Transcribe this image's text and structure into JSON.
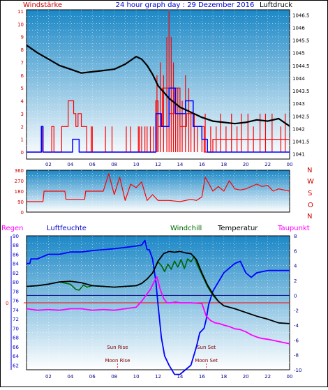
{
  "colors": {
    "grad_top": "#1c88c6",
    "grad_bottom": "#ffffff",
    "wind_red": "#ff0000",
    "wind_blue": "#0000ff",
    "pressure": "#000000",
    "humidity": "#0000ff",
    "windchill": "#006600",
    "temperature": "#000000",
    "dewpoint": "#ff00ff",
    "rain": "#ff0000",
    "label_darkred": "#800000",
    "header_blue": "#0000cc",
    "axis_right": "#000080"
  },
  "header": {
    "left": "Windstärke",
    "center": "24 hour graph day : 29 Dezember 2016",
    "right": "Luftdruck"
  },
  "compass": [
    "N",
    "W",
    "S",
    "O",
    "N"
  ],
  "legend": {
    "rain": "Regen",
    "humidity": "Luftfeuchte",
    "windchill": "Windchill",
    "temperature": "Temperatur",
    "dewpoint": "Taupunkt"
  },
  "astro": {
    "sun_rise": "Sun Rise",
    "sun_set": "Sun Set",
    "moon_rise": "Moon Rise",
    "moon_set": "Moon Set",
    "sun_rise_h": 8.3,
    "sun_set_h": 16.4,
    "moon_rise_h": 8.3,
    "moon_set_h": 16.4
  },
  "chart_data": [
    {
      "type": "line",
      "name": "wind-and-pressure",
      "x_ticks": [
        "02",
        "04",
        "06",
        "08",
        "10",
        "12",
        "14",
        "16",
        "18",
        "20",
        "22",
        "00"
      ],
      "y_left_ticks": [
        0,
        1,
        2,
        3,
        4,
        5,
        6,
        7,
        8,
        9,
        10,
        11
      ],
      "y_left_lim": [
        0,
        11
      ],
      "y_right_ticks": [
        "1041",
        "1041.5",
        "1042",
        "1042.5",
        "1043",
        "1043.5",
        "1044",
        "1044.5",
        "1045",
        "1045.5",
        "1046",
        "1046.5"
      ],
      "y_right_lim": [
        1040.8,
        1046.7
      ],
      "x_lim": [
        0,
        24
      ],
      "pressure": {
        "x": [
          0,
          1,
          2,
          3,
          4,
          5,
          6,
          7,
          8,
          9,
          10,
          10.5,
          11,
          11.5,
          12,
          12.5,
          13,
          14,
          15,
          16,
          17,
          18,
          19,
          20,
          21,
          22,
          23,
          24
        ],
        "y": [
          1045.3,
          1045.0,
          1044.75,
          1044.5,
          1044.35,
          1044.2,
          1044.25,
          1044.3,
          1044.35,
          1044.55,
          1044.85,
          1044.75,
          1044.5,
          1044.15,
          1043.7,
          1043.45,
          1043.2,
          1042.85,
          1042.65,
          1042.45,
          1042.3,
          1042.25,
          1042.2,
          1042.25,
          1042.35,
          1042.3,
          1042.4,
          1042.1
        ]
      },
      "wind_gust_bars": {
        "x": [
          5.9,
          6.0,
          7.2,
          7.8,
          9.1,
          9.5,
          10.2,
          10.3,
          10.5,
          10.8,
          11.0,
          11.3,
          11.6,
          11.8,
          11.9,
          12.0,
          12.2,
          12.5,
          12.8,
          13.0,
          13.2,
          13.4,
          13.6,
          13.8,
          14.0,
          14.2,
          14.5,
          14.8,
          15.0,
          15.3,
          15.6,
          16.0,
          16.3,
          16.8,
          17.3,
          17.7,
          18.2,
          18.7,
          19.2,
          19.6,
          20.2,
          20.7,
          21.3,
          21.8,
          22.4,
          23.2,
          23.6
        ],
        "y": [
          2,
          2,
          2,
          2,
          2,
          2,
          2,
          2,
          2,
          2,
          2,
          2,
          2,
          4,
          6,
          2,
          7,
          6,
          9,
          11,
          9,
          7,
          5,
          5,
          3,
          4,
          6,
          5,
          3,
          3,
          2,
          2,
          3,
          2,
          2,
          3,
          2,
          3,
          2,
          3,
          3,
          2,
          3,
          3,
          3,
          2,
          3
        ]
      },
      "wind_red_steps": {
        "x": [
          0,
          1.4,
          1.4,
          1.5,
          1.5,
          2.3,
          2.3,
          2.5,
          2.5,
          3.2,
          3.2,
          3.8,
          3.8,
          4.3,
          4.3,
          4.5,
          4.5,
          4.7,
          4.7,
          5.0,
          5.0,
          5.5,
          5.5,
          6.0,
          6.0,
          11.8,
          11.8,
          12.0,
          12.0,
          12.4,
          12.4,
          13.0,
          13.0,
          13.5,
          13.5,
          14.0,
          14.0,
          14.6,
          14.6,
          15.3,
          15.3,
          16.2,
          16.2,
          17.0,
          17.0,
          24
        ],
        "y": [
          0,
          0,
          2,
          2,
          0,
          0,
          2,
          2,
          0,
          0,
          2,
          2,
          4,
          4,
          3,
          3,
          2,
          2,
          3,
          3,
          2,
          2,
          0,
          0,
          0,
          0,
          4,
          4,
          2,
          2,
          5,
          5,
          3,
          3,
          5,
          5,
          2,
          2,
          3,
          3,
          2,
          2,
          0,
          0,
          1,
          1
        ]
      },
      "wind_blue_steps": {
        "x": [
          0,
          1.35,
          1.35,
          1.5,
          1.5,
          4.2,
          4.2,
          4.8,
          4.8,
          5.2,
          5.2,
          11.8,
          11.8,
          12.3,
          12.3,
          13.0,
          13.0,
          13.6,
          13.6,
          14.5,
          14.5,
          15.2,
          15.2,
          16.0,
          16.0,
          16.5,
          16.5,
          24
        ],
        "y": [
          0,
          0,
          2,
          2,
          0,
          0,
          1,
          1,
          0,
          0,
          0,
          0,
          3,
          3,
          2,
          2,
          5,
          5,
          3,
          3,
          4,
          4,
          2,
          2,
          1,
          1,
          0,
          0
        ]
      }
    },
    {
      "type": "line",
      "name": "wind-direction",
      "x_lim": [
        0,
        24
      ],
      "y_ticks": [
        0,
        90,
        180,
        270,
        360
      ],
      "y_lim": [
        0,
        360
      ],
      "direction": {
        "x": [
          0,
          1.5,
          1.6,
          3.5,
          3.6,
          5.3,
          5.4,
          7.0,
          7.5,
          8.0,
          8.5,
          9.0,
          9.5,
          10.0,
          10.5,
          11.0,
          11.5,
          12.0,
          13.0,
          14.0,
          15.0,
          15.5,
          16.0,
          16.3,
          16.6,
          17.0,
          17.5,
          18.0,
          18.5,
          19.0,
          19.5,
          20.0,
          21.0,
          21.5,
          22.0,
          22.5,
          23.0,
          24.0
        ],
        "y": [
          90,
          90,
          180,
          180,
          110,
          110,
          180,
          180,
          330,
          150,
          300,
          100,
          240,
          210,
          260,
          100,
          150,
          100,
          100,
          90,
          110,
          100,
          130,
          300,
          250,
          180,
          220,
          180,
          270,
          200,
          190,
          200,
          240,
          220,
          230,
          180,
          200,
          180
        ]
      }
    },
    {
      "type": "line",
      "name": "temperature-and-humidity",
      "x_ticks": [
        "02",
        "04",
        "06",
        "08",
        "10",
        "12",
        "14",
        "16",
        "18",
        "20",
        "22",
        "00"
      ],
      "x_lim": [
        0,
        24
      ],
      "y_left_ticks": [
        62,
        64,
        66,
        68,
        70,
        72,
        74,
        76,
        78,
        80,
        82,
        84,
        86,
        88,
        90
      ],
      "y_left_lim": [
        61,
        90
      ],
      "y_right_ticks": [
        -10,
        -8,
        -6,
        -4,
        -2,
        0,
        2,
        4,
        6,
        8
      ],
      "y_right_lim": [
        -10,
        8
      ],
      "rain_axis_label": "0",
      "humidity": {
        "x": [
          0,
          0.3,
          0.4,
          1.0,
          2.0,
          3.0,
          4.0,
          5.0,
          6.0,
          7.0,
          8.0,
          9.0,
          10.0,
          10.5,
          10.8,
          11.0,
          11.2,
          11.5,
          11.8,
          12.0,
          12.3,
          12.6,
          13.0,
          13.5,
          14.0,
          14.5,
          15.0,
          15.5,
          15.8,
          16.2,
          16.4,
          16.6,
          17.0,
          17.5,
          18.0,
          18.5,
          19.0,
          19.5,
          20.0,
          20.5,
          21.0,
          22.0,
          23.0,
          24.0
        ],
        "y": [
          84,
          84,
          85,
          85,
          86,
          86,
          86.5,
          86.5,
          86.8,
          87,
          87.2,
          87.5,
          87.8,
          88,
          89,
          87,
          87,
          85,
          80,
          75,
          68,
          64,
          62,
          60,
          60,
          61,
          62,
          66,
          69,
          70,
          72,
          75,
          78,
          80,
          82,
          83,
          84,
          84.5,
          82,
          81,
          82,
          82.5,
          82.5,
          82.5
        ]
      },
      "temperature": {
        "x": [
          0,
          1.0,
          2.0,
          3.0,
          4.0,
          5.0,
          6.0,
          7.0,
          8.0,
          9.0,
          10.0,
          10.5,
          11.0,
          11.5,
          12.0,
          12.5,
          13.0,
          13.5,
          14.0,
          14.5,
          15.0,
          15.5,
          16.0,
          16.5,
          17.0,
          17.5,
          18.0,
          19.0,
          20.0,
          21.0,
          22.0,
          23.0,
          24.0
        ],
        "y": [
          1.2,
          1.3,
          1.5,
          1.8,
          1.9,
          1.7,
          1.3,
          1.2,
          1.1,
          1.2,
          1.3,
          1.6,
          2.2,
          3.0,
          4.6,
          5.6,
          5.9,
          5.8,
          5.9,
          5.7,
          5.6,
          4.8,
          3.0,
          1.4,
          0.2,
          -0.8,
          -1.4,
          -1.8,
          -2.3,
          -2.8,
          -3.2,
          -3.7,
          -3.8
        ]
      },
      "windchill": {
        "x": [
          0,
          1.0,
          2.0,
          3.0,
          4.0,
          4.5,
          4.8,
          5.2,
          5.5,
          6.0,
          7.0,
          8.0,
          9.0,
          10.0,
          10.5,
          11.0,
          11.5,
          12.0,
          12.3,
          12.6,
          12.9,
          13.2,
          13.5,
          13.8,
          14.1,
          14.4,
          14.7,
          15.0,
          15.3,
          15.6,
          16.0,
          16.5,
          17.0,
          17.5
        ],
        "y": [
          1.2,
          1.3,
          1.5,
          1.8,
          1.5,
          0.8,
          0.7,
          1.4,
          1.1,
          1.3,
          1.2,
          1.1,
          1.2,
          1.3,
          1.6,
          2.2,
          3.0,
          4.5,
          4.0,
          3.2,
          4.2,
          3.5,
          4.6,
          3.8,
          4.8,
          3.6,
          4.9,
          4.5,
          5.2,
          4.0,
          2.8,
          1.2,
          0.0,
          -0.8
        ]
      },
      "dewpoint": {
        "x": [
          0,
          1.0,
          2.0,
          3.0,
          4.0,
          5.0,
          6.0,
          7.0,
          8.0,
          9.0,
          10.0,
          10.5,
          11.0,
          11.3,
          11.6,
          11.9,
          12.2,
          12.5,
          12.8,
          13.2,
          13.6,
          14.0,
          15.0,
          16.0,
          16.4,
          16.8,
          17.2,
          17.6,
          18.0,
          18.5,
          19.0,
          19.5,
          20.0,
          20.5,
          21.0,
          21.5,
          22.0,
          23.0,
          24.0
        ],
        "y": [
          -1.8,
          -2.0,
          -1.9,
          -2.0,
          -1.8,
          -1.8,
          -2.0,
          -1.9,
          -2.0,
          -1.8,
          -1.6,
          -0.8,
          0.2,
          0.8,
          1.7,
          2.5,
          0.8,
          -0.4,
          -1.0,
          -1.0,
          -0.9,
          -1.0,
          -1.0,
          -1.1,
          -2.8,
          -3.4,
          -3.7,
          -3.8,
          -4.0,
          -4.2,
          -4.5,
          -4.6,
          -4.9,
          -5.3,
          -5.6,
          -5.8,
          -5.9,
          -6.2,
          -6.5
        ]
      }
    }
  ]
}
